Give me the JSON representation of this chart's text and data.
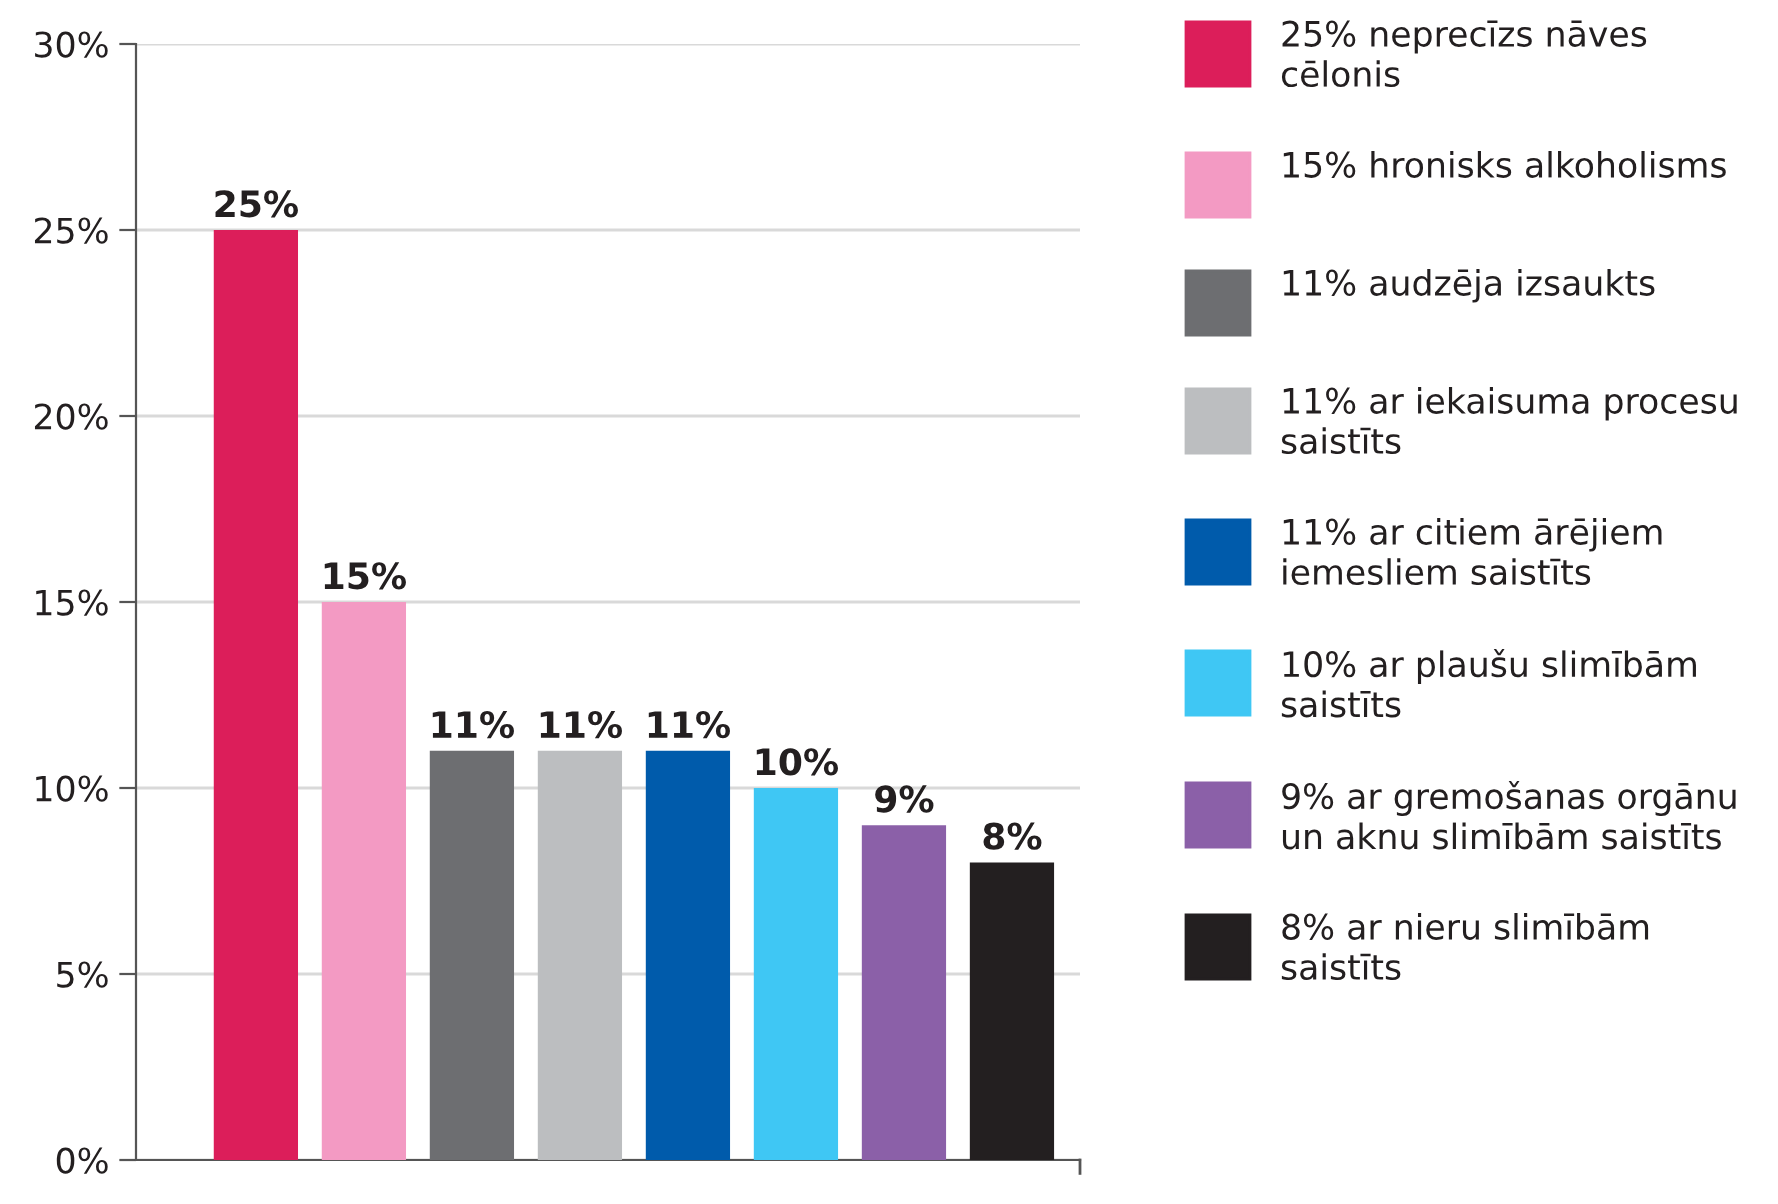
{
  "chart_data": {
    "type": "bar",
    "categories": [
      null,
      null,
      null,
      null,
      null,
      null,
      null,
      null
    ],
    "series": [
      {
        "name": "25% neprecīzs nāves cēlonis",
        "color": "#dc1e5a",
        "values": [
          25,
          null,
          null,
          null,
          null,
          null,
          null,
          null
        ],
        "value_labels": [
          "25%",
          null,
          null,
          null,
          null,
          null,
          null,
          null
        ]
      },
      {
        "name": "15% hronisks alkoholisms",
        "color": "#f39ac3",
        "values": [
          null,
          15,
          null,
          null,
          null,
          null,
          null,
          null
        ],
        "value_labels": [
          null,
          "15%",
          null,
          null,
          null,
          null,
          null,
          null
        ]
      },
      {
        "name": "11% audzēja izsaukts",
        "color": "#6d6e71",
        "values": [
          null,
          null,
          11,
          null,
          null,
          null,
          null,
          null
        ],
        "value_labels": [
          null,
          null,
          "11%",
          null,
          null,
          null,
          null,
          null
        ]
      },
      {
        "name": "11% ar iekaisuma procesu saistīts",
        "color": "#bcbec0",
        "values": [
          null,
          null,
          null,
          11,
          null,
          null,
          null,
          null
        ],
        "value_labels": [
          null,
          null,
          null,
          "11%",
          null,
          null,
          null,
          null
        ]
      },
      {
        "name": "11% ar citiem ārējiem iemesliem saistīts",
        "color": "#005bab",
        "values": [
          null,
          null,
          null,
          null,
          11,
          null,
          null,
          null
        ],
        "value_labels": [
          null,
          null,
          null,
          null,
          "11%",
          null,
          null,
          null
        ]
      },
      {
        "name": "10% ar plaušu slimībām saistīts",
        "color": "#3fc7f4",
        "values": [
          null,
          null,
          null,
          null,
          null,
          10,
          null,
          null
        ],
        "value_labels": [
          null,
          null,
          null,
          null,
          null,
          "10%",
          null,
          null
        ]
      },
      {
        "name": "9% ar gremošanas orgānu un aknu slimībām saistīts",
        "color": "#8b60a8",
        "values": [
          null,
          null,
          null,
          null,
          null,
          null,
          9,
          null
        ],
        "value_labels": [
          null,
          null,
          null,
          null,
          null,
          null,
          "9%",
          null
        ]
      },
      {
        "name": "8% ar nieru slimībām saistīts",
        "color": "#231f20",
        "values": [
          null,
          null,
          null,
          null,
          null,
          null,
          null,
          8
        ],
        "value_labels": [
          null,
          null,
          null,
          null,
          null,
          null,
          null,
          "8%"
        ]
      }
    ],
    "ylim": [
      0,
      30
    ],
    "yticks": [
      {
        "value": 0,
        "label": "0%"
      },
      {
        "value": 5,
        "label": "5%"
      },
      {
        "value": 10,
        "label": "10%"
      },
      {
        "value": 15,
        "label": "15%"
      },
      {
        "value": 20,
        "label": "20%"
      },
      {
        "value": 25,
        "label": "25%"
      },
      {
        "value": 30,
        "label": "30%"
      }
    ],
    "grid": "y",
    "legend": "right"
  }
}
